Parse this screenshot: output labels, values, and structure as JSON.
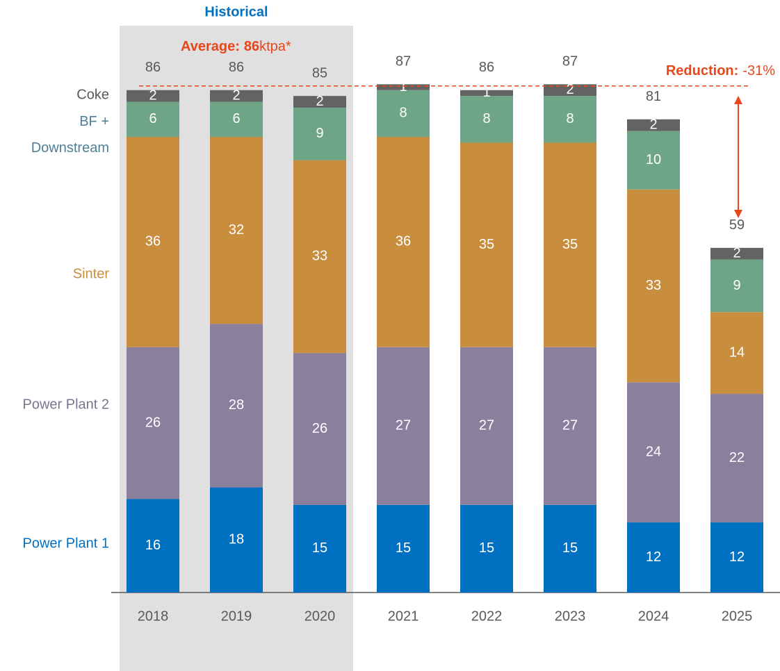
{
  "chart_data": {
    "type": "stacked_bar",
    "categories": [
      "2018",
      "2019",
      "2020",
      "2021",
      "2022",
      "2023",
      "2024",
      "2025"
    ],
    "series": [
      {
        "name": "Power Plant 1",
        "color": "#0070c0",
        "values": [
          16,
          18,
          15,
          15,
          15,
          15,
          12,
          12
        ]
      },
      {
        "name": "Power Plant 2",
        "color": "#8b7f9e",
        "values": [
          26,
          28,
          26,
          27,
          27,
          27,
          24,
          22
        ]
      },
      {
        "name": "Sinter",
        "color": "#c98d3e",
        "values": [
          36,
          32,
          33,
          36,
          35,
          35,
          33,
          14
        ]
      },
      {
        "name": "BF + Downstream",
        "color": "#6fa587",
        "values": [
          6,
          6,
          9,
          8,
          8,
          8,
          10,
          9
        ]
      },
      {
        "name": "Coke",
        "color": "#636363",
        "values": [
          2,
          2,
          2,
          1,
          1,
          2,
          2,
          2
        ]
      }
    ],
    "totals": [
      86,
      86,
      85,
      87,
      86,
      87,
      81,
      59
    ],
    "highlight": {
      "label": "Historical",
      "from": "2018",
      "to": "2020"
    },
    "average": {
      "label": "Average:",
      "value": 86,
      "unit": "ktpa*"
    },
    "reduction": {
      "label": "Reduction:",
      "value": -31,
      "value_label": "-31%"
    }
  }
}
